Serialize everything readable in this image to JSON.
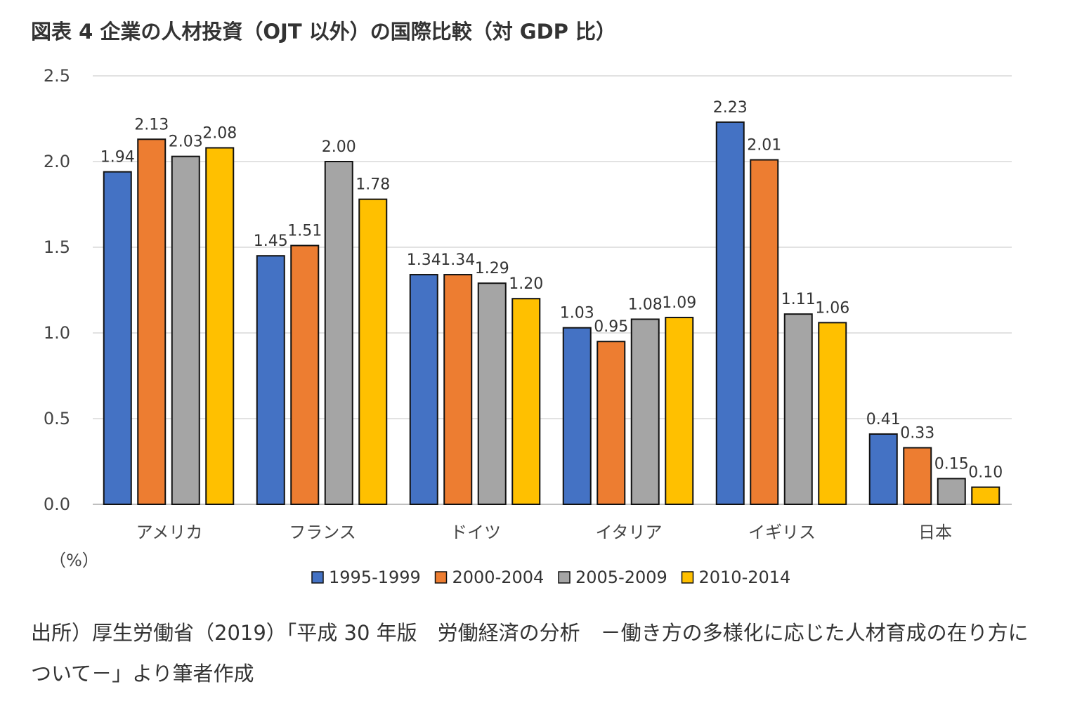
{
  "title": "図表 4 企業の人材投資（OJT 以外）の国際比較（対 GDP 比）",
  "source_lines": [
    "出所）厚生労働省（2019）「平成 30 年版　労働経済の分析　－働き方の多様化に応じた人材育成の在り方に",
    "ついて－」より筆者作成"
  ],
  "chart_data": {
    "type": "bar",
    "categories": [
      "アメリカ",
      "フランス",
      "ドイツ",
      "イタリア",
      "イギリス",
      "日本"
    ],
    "series": [
      {
        "name": "1995-1999",
        "color": "#4472c4",
        "values": [
          1.94,
          1.45,
          1.34,
          1.03,
          2.23,
          0.41
        ]
      },
      {
        "name": "2000-2004",
        "color": "#ed7d31",
        "values": [
          2.13,
          1.51,
          1.34,
          0.95,
          2.01,
          0.33
        ]
      },
      {
        "name": "2005-2009",
        "color": "#a5a5a5",
        "values": [
          2.03,
          2.0,
          1.29,
          1.08,
          1.11,
          0.15
        ]
      },
      {
        "name": "2010-2014",
        "color": "#ffc000",
        "values": [
          2.08,
          1.78,
          1.2,
          1.09,
          1.06,
          0.1
        ]
      }
    ],
    "ylim": [
      0,
      2.5
    ],
    "yticks": [
      "0.0",
      "0.5",
      "1.0",
      "1.5",
      "2.0",
      "2.5"
    ],
    "unit_label": "（%）",
    "grid": true,
    "legend": "bottom"
  }
}
